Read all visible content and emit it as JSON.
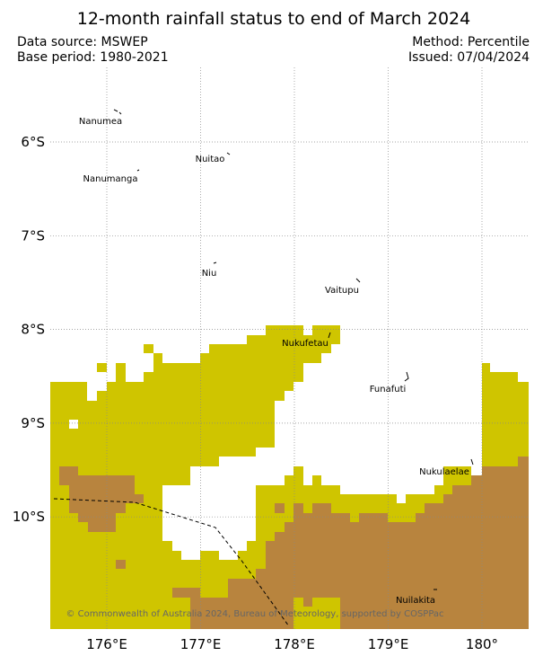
{
  "title": "12-month rainfall status to end of March 2024",
  "data_source": "Data source: MSWEP",
  "base_period": "Base period: 1980-2021",
  "method": "Method: Percentile",
  "issued": "Issued: 07/04/2024",
  "lat_ticks": [
    {
      "value": -6,
      "label": "6°S"
    },
    {
      "value": -7,
      "label": "7°S"
    },
    {
      "value": -8,
      "label": "8°S"
    },
    {
      "value": -9,
      "label": "9°S"
    },
    {
      "value": -10,
      "label": "10°S"
    }
  ],
  "lon_ticks": [
    {
      "value": 176,
      "label": "176°E"
    },
    {
      "value": 177,
      "label": "177°E"
    },
    {
      "value": 178,
      "label": "178°E"
    },
    {
      "value": 179,
      "label": "179°E"
    },
    {
      "value": 180,
      "label": "180°"
    }
  ],
  "places": [
    "Nanumea",
    "Nuitao",
    "Nanumanga",
    "Niu",
    "Vaitupu",
    "Nukufetau",
    "Funafuti",
    "Nukulaelae",
    "Nuilakita"
  ],
  "credit": "© Commonwealth of Australia 2024, Bureau of Meteorology, supported by COSPPac"
}
